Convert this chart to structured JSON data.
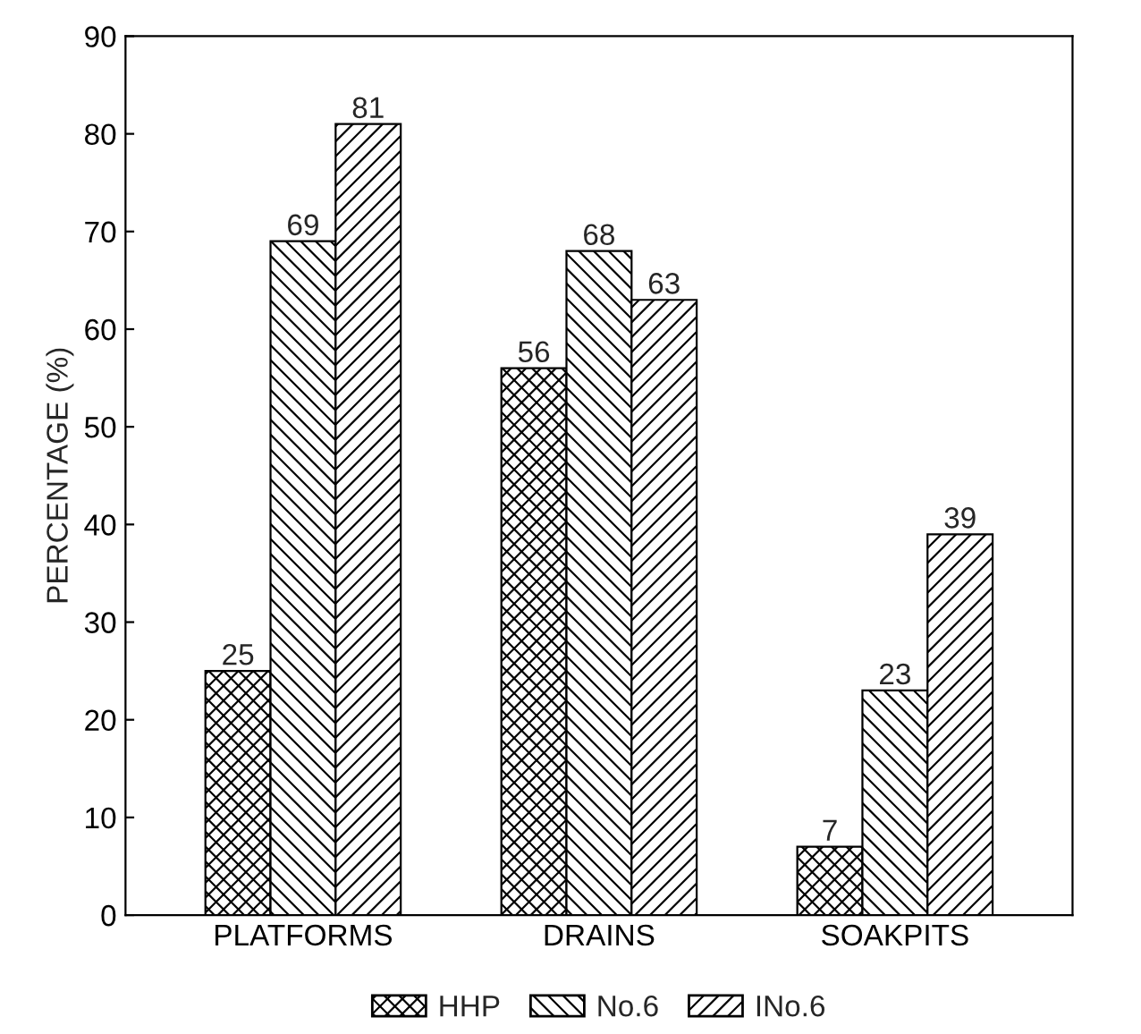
{
  "chart_data": {
    "type": "bar",
    "ylabel": "PERCENTAGE (%)",
    "categories": [
      "PLATFORMS",
      "DRAINS",
      "SOAKPITS"
    ],
    "series": [
      {
        "name": "HHP",
        "color": "#000000",
        "values": [
          25,
          56,
          7
        ]
      },
      {
        "name": "No.6",
        "color": "#000000",
        "values": [
          69,
          68,
          23
        ]
      },
      {
        "name": "INo.6",
        "color": "#000000",
        "values": [
          81,
          63,
          39
        ]
      }
    ],
    "ylim": [
      0,
      90
    ],
    "yticks": [
      0,
      10,
      20,
      30,
      40,
      50,
      60,
      70,
      80,
      90
    ],
    "grid": false,
    "legend": "bottom",
    "data_labels": true
  }
}
